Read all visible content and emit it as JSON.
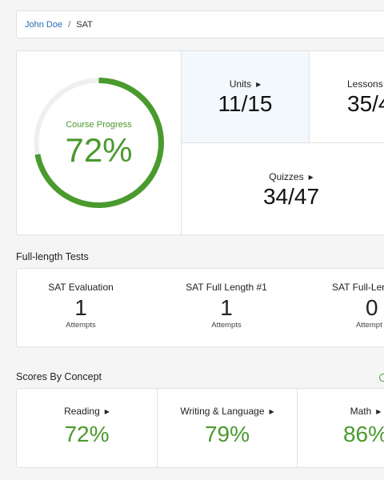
{
  "breadcrumb": {
    "user": "John Doe",
    "separator": "/",
    "current": "SAT"
  },
  "course_progress": {
    "label": "Course Progress",
    "percent_text": "72%",
    "fraction": 0.72,
    "accent_color": "#4a9a2e"
  },
  "stats": {
    "units": {
      "label": "Units",
      "value": "11/15"
    },
    "lessons": {
      "label": "Lessons",
      "value": "35/4"
    },
    "quizzes": {
      "label": "Quizzes",
      "value": "34/47"
    }
  },
  "tests": {
    "heading": "Full-length Tests",
    "items": [
      {
        "name": "SAT Evaluation",
        "count": "1",
        "sub": "Attempts"
      },
      {
        "name": "SAT Full Length #1",
        "count": "1",
        "sub": "Attempts"
      },
      {
        "name": "SAT Full-Len",
        "count": "0",
        "sub": "Attempt"
      }
    ]
  },
  "scores": {
    "heading": "Scores By Concept",
    "items": [
      {
        "name": "Reading",
        "value": "72%"
      },
      {
        "name": "Writing & Language",
        "value": "79%"
      },
      {
        "name": "Math",
        "value": "86%"
      }
    ]
  },
  "icons": {
    "arrow": "caret-right-icon",
    "help": "help-circle-icon"
  }
}
